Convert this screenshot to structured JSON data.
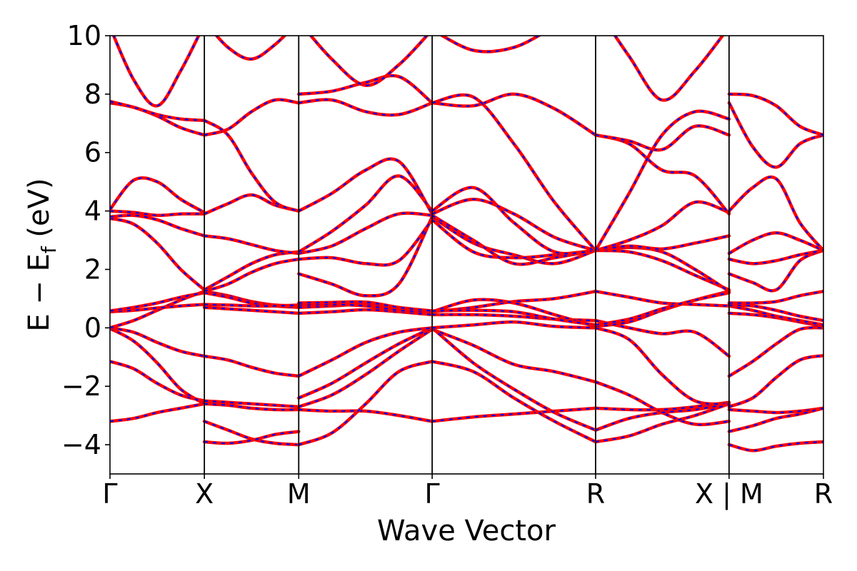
{
  "chart_data": {
    "type": "line",
    "xlabel": "Wave Vector",
    "ylabel": "E − E_f (eV)",
    "ylabel_parts": {
      "pre": "E  −  E",
      "sub": "f",
      "post": " (eV)"
    },
    "ylim": [
      -5,
      10
    ],
    "y_ticks": [
      {
        "value": 10,
        "label": "10"
      },
      {
        "value": 8,
        "label": "8"
      },
      {
        "value": 6,
        "label": "6"
      },
      {
        "value": 4,
        "label": "4"
      },
      {
        "value": 2,
        "label": "2"
      },
      {
        "value": 0,
        "label": "0"
      },
      {
        "value": -2,
        "label": "−2"
      },
      {
        "value": -4,
        "label": "−4"
      }
    ],
    "x_points": [
      {
        "k": 0.0,
        "label": "Γ"
      },
      {
        "k": 1.0,
        "label": "X"
      },
      {
        "k": 2.0,
        "label": "M"
      },
      {
        "k": 3.414,
        "label": "Γ"
      },
      {
        "k": 5.146,
        "label": "R"
      },
      {
        "k": 6.56,
        "label": "X | M"
      },
      {
        "k": 7.56,
        "label": "R"
      }
    ],
    "xlim": [
      0,
      7.56
    ],
    "grid": false,
    "series_colors": {
      "dft": "#ff0000",
      "wannier": "#0000ff"
    },
    "segments": [
      {
        "x": [
          0,
          0.25,
          0.5,
          0.75,
          1
        ],
        "bands": [
          [
            -3.2,
            -3.1,
            -2.9,
            -2.75,
            -2.6
          ],
          [
            -1.15,
            -1.4,
            -1.9,
            -2.3,
            -2.5
          ],
          [
            -0.02,
            -0.45,
            -1.2,
            -2.1,
            -2.6
          ],
          [
            0.0,
            -0.15,
            -0.5,
            -0.8,
            -0.97
          ],
          [
            0.0,
            0.25,
            0.6,
            0.95,
            1.25
          ],
          [
            0.55,
            0.6,
            0.68,
            0.75,
            0.8
          ],
          [
            0.58,
            0.7,
            0.85,
            1.05,
            1.2
          ],
          [
            3.75,
            3.55,
            2.9,
            2.0,
            1.3
          ],
          [
            3.8,
            3.85,
            3.7,
            3.4,
            3.15
          ],
          [
            4.0,
            3.95,
            3.85,
            3.9,
            3.9
          ],
          [
            4.05,
            5.05,
            5.0,
            4.4,
            3.95
          ],
          [
            7.7,
            7.55,
            7.25,
            6.85,
            6.6
          ],
          [
            7.75,
            7.55,
            7.3,
            7.15,
            7.1
          ],
          [
            10.3,
            8.5,
            7.6,
            8.8,
            10.4
          ]
        ]
      },
      {
        "x": [
          1,
          1.25,
          1.5,
          1.75,
          2
        ],
        "bands": [
          [
            -2.6,
            -2.65,
            -2.75,
            -2.8,
            -2.8
          ],
          [
            -2.5,
            -2.55,
            -2.6,
            -2.65,
            -2.7
          ],
          [
            -0.97,
            -1.1,
            -1.35,
            -1.55,
            -1.65
          ],
          [
            -3.2,
            -3.5,
            -3.8,
            -3.95,
            -4.0
          ],
          [
            -3.9,
            -3.95,
            -3.85,
            -3.65,
            -3.55
          ],
          [
            1.25,
            1.1,
            0.9,
            0.78,
            0.75
          ],
          [
            1.2,
            1.05,
            0.85,
            0.75,
            0.7
          ],
          [
            0.8,
            0.78,
            0.75,
            0.75,
            0.78
          ],
          [
            0.7,
            0.65,
            0.6,
            0.55,
            0.5
          ],
          [
            1.3,
            1.75,
            2.2,
            2.5,
            2.6
          ],
          [
            1.25,
            1.5,
            1.9,
            2.2,
            2.35
          ],
          [
            3.15,
            3.05,
            2.85,
            2.65,
            2.55
          ],
          [
            3.9,
            4.25,
            4.55,
            4.2,
            4.0
          ],
          [
            6.6,
            6.8,
            7.4,
            7.8,
            7.7
          ],
          [
            7.1,
            6.6,
            5.3,
            4.3,
            4.0
          ],
          [
            10.5,
            9.6,
            9.2,
            9.7,
            10.5
          ]
        ]
      },
      {
        "x": [
          2,
          2.35,
          2.71,
          3.06,
          3.414
        ],
        "bands": [
          [
            -2.8,
            -2.85,
            -2.85,
            -3.0,
            -3.2
          ],
          [
            -2.7,
            -2.3,
            -1.6,
            -0.8,
            -0.05
          ],
          [
            -2.4,
            -1.9,
            -1.2,
            -0.55,
            0.0
          ],
          [
            -1.65,
            -1.1,
            -0.5,
            -0.15,
            0.0
          ],
          [
            -4.0,
            -3.6,
            -2.6,
            -1.5,
            -1.15
          ],
          [
            0.5,
            0.55,
            0.62,
            0.55,
            0.45
          ],
          [
            0.7,
            0.75,
            0.8,
            0.65,
            0.55
          ],
          [
            0.78,
            0.8,
            0.75,
            0.6,
            0.55
          ],
          [
            0.85,
            0.87,
            0.88,
            0.7,
            0.58
          ],
          [
            1.85,
            1.5,
            1.1,
            1.5,
            3.8
          ],
          [
            2.35,
            2.4,
            2.2,
            2.3,
            3.7
          ],
          [
            2.55,
            2.8,
            3.4,
            3.9,
            3.85
          ],
          [
            2.6,
            3.3,
            4.2,
            5.2,
            4.0
          ],
          [
            4.0,
            4.6,
            5.4,
            5.7,
            3.9
          ],
          [
            7.7,
            7.8,
            7.4,
            7.3,
            7.7
          ],
          [
            8.0,
            8.1,
            8.4,
            8.6,
            7.7
          ],
          [
            10.5,
            9.2,
            8.3,
            9.0,
            10.2
          ]
        ]
      },
      {
        "x": [
          3.414,
          3.85,
          4.28,
          4.71,
          5.146
        ],
        "bands": [
          [
            -3.2,
            -3.05,
            -2.95,
            -2.85,
            -2.75
          ],
          [
            -0.05,
            -0.6,
            -1.25,
            -1.5,
            -1.85
          ],
          [
            0.0,
            -1.2,
            -2.1,
            -2.9,
            -3.5
          ],
          [
            0.0,
            0.1,
            0.2,
            0.05,
            0.0
          ],
          [
            -1.15,
            -1.5,
            -2.4,
            -3.2,
            -3.9
          ],
          [
            0.45,
            0.45,
            0.4,
            0.3,
            0.25
          ],
          [
            0.55,
            0.7,
            0.9,
            1.0,
            1.25
          ],
          [
            0.55,
            0.95,
            0.85,
            0.45,
            0.05
          ],
          [
            0.58,
            0.6,
            0.55,
            0.3,
            0.1
          ],
          [
            3.8,
            2.9,
            2.5,
            2.2,
            2.65
          ],
          [
            3.7,
            2.6,
            2.4,
            2.5,
            2.65
          ],
          [
            3.85,
            3.0,
            2.2,
            2.4,
            2.65
          ],
          [
            4.0,
            4.8,
            3.6,
            2.6,
            2.65
          ],
          [
            3.9,
            4.4,
            3.9,
            3.1,
            2.65
          ],
          [
            7.7,
            7.6,
            8.0,
            7.5,
            6.6
          ],
          [
            7.7,
            7.9,
            6.3,
            4.3,
            2.65
          ],
          [
            10.2,
            9.5,
            9.6,
            10.3,
            11.0
          ]
        ]
      },
      {
        "x": [
          5.146,
          5.5,
          5.85,
          6.2,
          6.56
        ],
        "bands": [
          [
            -2.75,
            -2.8,
            -2.8,
            -2.7,
            -2.55
          ],
          [
            -1.85,
            -2.3,
            -2.9,
            -3.3,
            -3.2
          ],
          [
            -3.5,
            -3.1,
            -2.9,
            -2.8,
            -2.6
          ],
          [
            0.0,
            -0.4,
            -1.6,
            -2.5,
            -2.6
          ],
          [
            -3.9,
            -3.7,
            -3.3,
            -3.0,
            -2.6
          ],
          [
            0.25,
            0.0,
            -0.2,
            -0.15,
            -0.97
          ],
          [
            1.25,
            1.05,
            0.85,
            0.8,
            0.75
          ],
          [
            0.05,
            0.2,
            0.6,
            0.95,
            1.25
          ],
          [
            0.1,
            0.3,
            0.65,
            0.95,
            1.2
          ],
          [
            2.65,
            2.6,
            2.3,
            1.8,
            1.3
          ],
          [
            2.65,
            2.75,
            2.6,
            2.0,
            1.25
          ],
          [
            2.65,
            2.8,
            2.7,
            2.9,
            3.15
          ],
          [
            2.65,
            3.0,
            3.5,
            4.3,
            3.95
          ],
          [
            6.6,
            6.3,
            5.4,
            5.2,
            3.9
          ],
          [
            6.6,
            6.4,
            6.1,
            6.9,
            6.6
          ],
          [
            2.65,
            4.6,
            6.6,
            7.4,
            7.15
          ],
          [
            11.0,
            9.3,
            7.8,
            8.8,
            10.3
          ]
        ]
      },
      {
        "x": [
          6.56,
          6.81,
          7.06,
          7.31,
          7.56
        ],
        "bands": [
          [
            -2.8,
            -2.85,
            -2.9,
            -2.85,
            -2.75
          ],
          [
            -2.7,
            -2.4,
            -1.7,
            -1.1,
            -0.95
          ],
          [
            -1.65,
            -1.15,
            -0.55,
            -0.05,
            0.0
          ],
          [
            -3.55,
            -3.35,
            -3.1,
            -2.95,
            -2.75
          ],
          [
            -4.0,
            -4.2,
            -4.05,
            -3.95,
            -3.9
          ],
          [
            0.5,
            0.45,
            0.35,
            0.2,
            0.05
          ],
          [
            0.75,
            0.6,
            0.4,
            0.25,
            0.1
          ],
          [
            0.78,
            0.75,
            0.6,
            0.4,
            0.25
          ],
          [
            0.85,
            0.85,
            0.9,
            1.1,
            1.25
          ],
          [
            1.85,
            1.55,
            1.3,
            2.3,
            2.65
          ],
          [
            2.35,
            2.2,
            2.3,
            2.5,
            2.65
          ],
          [
            2.55,
            3.0,
            3.25,
            3.0,
            2.65
          ],
          [
            4.0,
            4.8,
            5.1,
            3.6,
            2.65
          ],
          [
            7.7,
            6.2,
            5.5,
            6.3,
            6.6
          ],
          [
            8.0,
            7.95,
            7.6,
            6.9,
            6.6
          ]
        ]
      }
    ]
  }
}
